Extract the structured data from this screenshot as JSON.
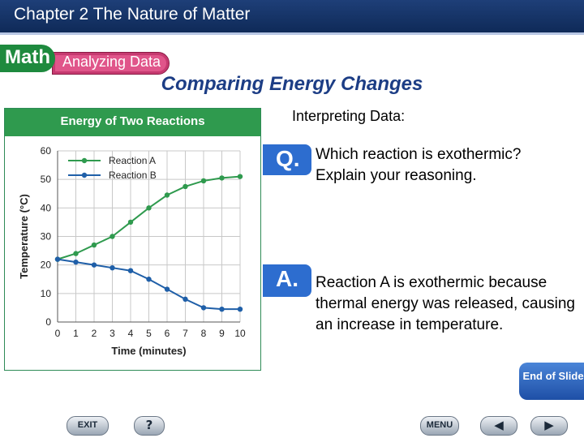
{
  "header": {
    "title": "Chapter 2  The Nature of Matter"
  },
  "tabs": {
    "math": "Math",
    "analyzing": "Analyzing Data"
  },
  "slide_title": "Comparing Energy Changes",
  "section_title": "Interpreting Data:",
  "question": {
    "badge": "Q.",
    "text": "Which reaction is exothermic? Explain your reasoning."
  },
  "answer": {
    "badge": "A.",
    "text": "Reaction A is exothermic because thermal energy was released, causing an increase in temperature."
  },
  "end_slide": {
    "label": "End of Slide"
  },
  "nav": {
    "exit": "EXIT",
    "help": "?",
    "menu": "MENU",
    "prev": "◀",
    "next": "▶"
  },
  "colors": {
    "header": "#1e3f78",
    "math_tab": "#1e8a3e",
    "analyzing_tab": "#e0558a",
    "chart_banner": "#2f9a4e",
    "series_a": "#2f9a4e",
    "series_b": "#1f5fa8",
    "badge": "#2d6dcf",
    "title": "#1c3d85"
  },
  "chart_data": {
    "type": "line",
    "title": "Energy of Two Reactions",
    "xlabel": "Time (minutes)",
    "ylabel": "Temperature (°C)",
    "x": [
      0,
      1,
      2,
      3,
      4,
      5,
      6,
      7,
      8,
      9,
      10
    ],
    "xlim": [
      0,
      10
    ],
    "ylim": [
      0,
      60
    ],
    "xticks": [
      0,
      1,
      2,
      3,
      4,
      5,
      6,
      7,
      8,
      9,
      10
    ],
    "yticks": [
      0,
      10,
      20,
      30,
      40,
      50,
      60
    ],
    "grid": true,
    "legend": "top-left",
    "series": [
      {
        "name": "Reaction A",
        "color": "#2f9a4e",
        "values": [
          22,
          24,
          27,
          30,
          35,
          40,
          44.5,
          47.5,
          49.5,
          50.5,
          51
        ]
      },
      {
        "name": "Reaction B",
        "color": "#1f5fa8",
        "values": [
          22,
          21,
          20,
          19,
          18,
          15,
          11.5,
          8,
          5,
          4.5,
          4.5
        ]
      }
    ]
  }
}
